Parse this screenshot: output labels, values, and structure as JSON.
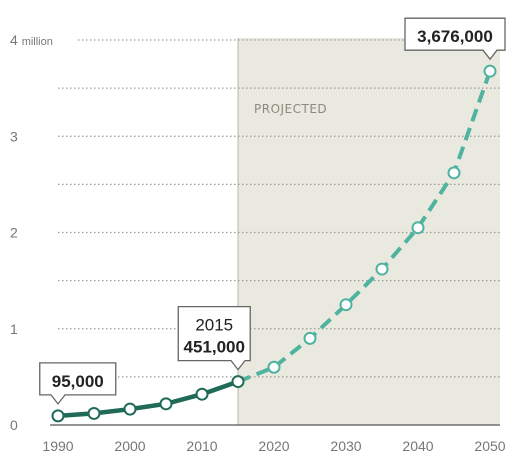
{
  "chart_data": {
    "type": "line",
    "projection_label": "PROJECTED",
    "y_ticks": [
      {
        "value": 0,
        "label": "0"
      },
      {
        "value": 1,
        "label": "1"
      },
      {
        "value": 2,
        "label": "2"
      },
      {
        "value": 3,
        "label": "3"
      },
      {
        "value": 4,
        "label": "4 million"
      }
    ],
    "x_ticks": [
      {
        "value": 1990,
        "label": "1990"
      },
      {
        "value": 2000,
        "label": "2000"
      },
      {
        "value": 2010,
        "label": "2010"
      },
      {
        "value": 2020,
        "label": "2020"
      },
      {
        "value": 2030,
        "label": "2030"
      },
      {
        "value": 2040,
        "label": "2040"
      },
      {
        "value": 2050,
        "label": "2050"
      }
    ],
    "xlim": [
      1988,
      2051
    ],
    "ylim": [
      0,
      4
    ],
    "projected_from": 2015,
    "grid": true,
    "colors": {
      "actual_line": "#1f6b57",
      "projected_line": "#4fb3a0",
      "projected_band": "#e9e9df",
      "grid": "#9a9a9a"
    },
    "series": [
      {
        "segment": "actual",
        "x": [
          1990,
          1995,
          2000,
          2005,
          2010,
          2015
        ],
        "y": [
          0.095,
          0.12,
          0.165,
          0.22,
          0.32,
          0.451
        ]
      },
      {
        "segment": "projected",
        "x": [
          2015,
          2020,
          2025,
          2030,
          2035,
          2040,
          2045,
          2050
        ],
        "y": [
          0.451,
          0.6,
          0.9,
          1.25,
          1.62,
          2.05,
          2.62,
          3.676
        ]
      }
    ],
    "annotations": [
      {
        "x": 1990,
        "y": 0.095,
        "lines": [
          "95,000"
        ],
        "bold": [
          true
        ]
      },
      {
        "x": 2015,
        "y": 0.451,
        "lines": [
          "2015",
          "451,000"
        ],
        "bold": [
          false,
          true
        ]
      },
      {
        "x": 2050,
        "y": 3.676,
        "lines": [
          "3,676,000"
        ],
        "bold": [
          true
        ]
      }
    ]
  }
}
